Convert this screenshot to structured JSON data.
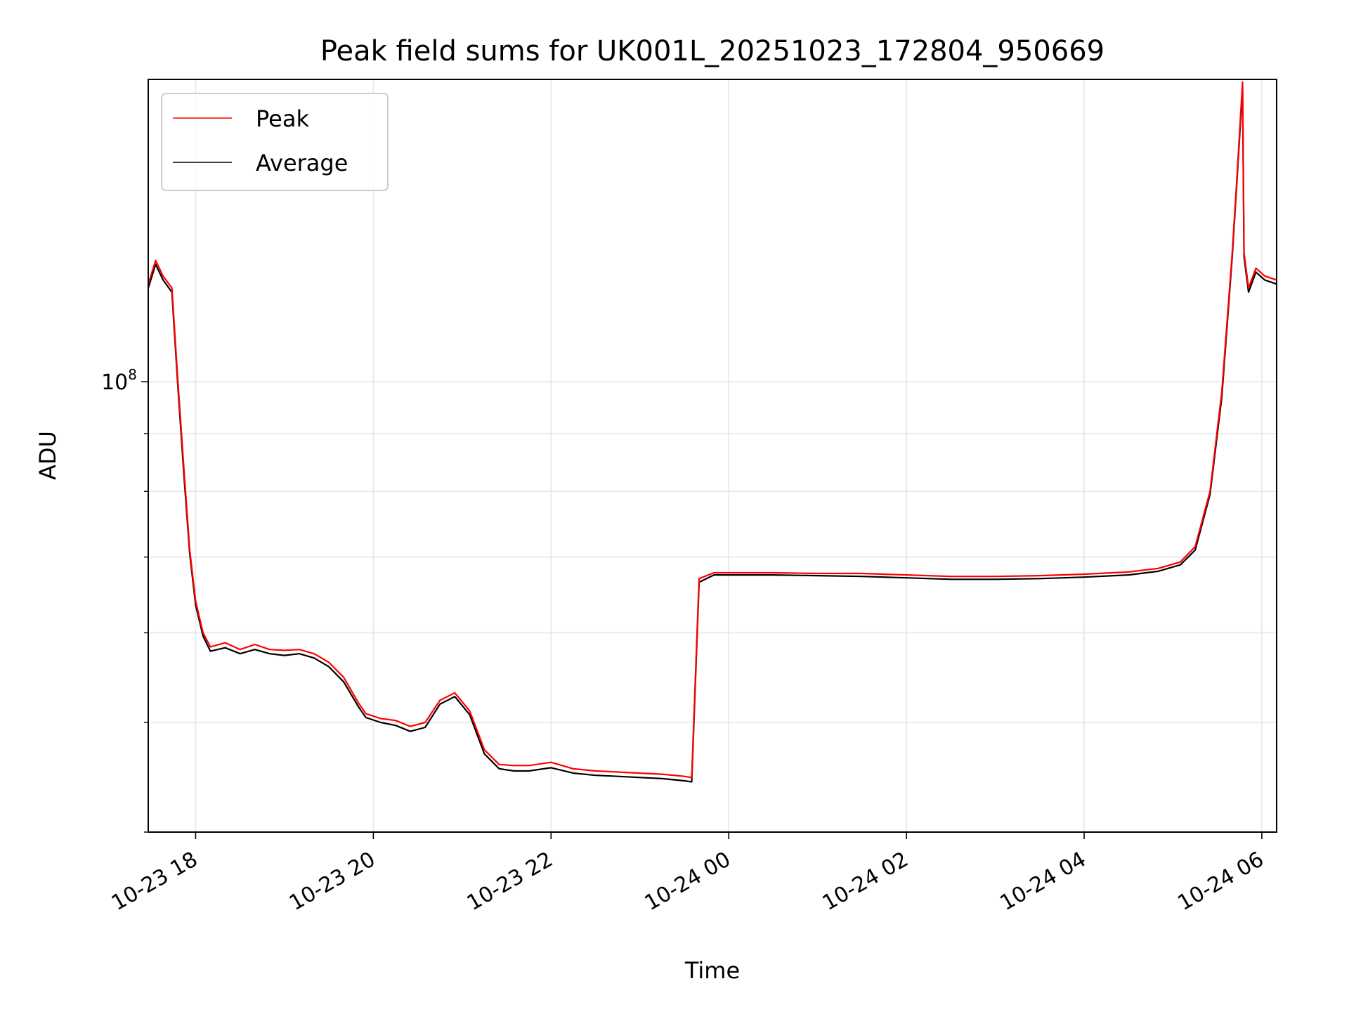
{
  "chart_data": {
    "type": "line",
    "title": "Peak field sums for UK001L_20251023_172804_950669",
    "xlabel": "Time",
    "ylabel": "ADU",
    "xlim": [
      "2025-10-23 17:28",
      "2025-10-24 06:10"
    ],
    "ylim": [
      40000000,
      185000000
    ],
    "yscale": "log",
    "grid": true,
    "legend_position": "top-left",
    "x_ticks": [
      {
        "time": "2025-10-23 18:00",
        "label": "10-23 18"
      },
      {
        "time": "2025-10-23 20:00",
        "label": "10-23 20"
      },
      {
        "time": "2025-10-23 22:00",
        "label": "10-23 22"
      },
      {
        "time": "2025-10-24 00:00",
        "label": "10-24 00"
      },
      {
        "time": "2025-10-24 02:00",
        "label": "10-24 02"
      },
      {
        "time": "2025-10-24 04:00",
        "label": "10-24 04"
      },
      {
        "time": "2025-10-24 06:00",
        "label": "10-24 06"
      }
    ],
    "y_major_tick": {
      "value": 100000000,
      "base": "10",
      "exponent": "8"
    },
    "y_minor_ticks": [
      40000000,
      50000000,
      60000000,
      70000000,
      80000000,
      90000000
    ],
    "series": [
      {
        "name": "Peak",
        "color": "#ff0000",
        "points": [
          [
            "2025-10-23 17:28",
            122000000
          ],
          [
            "2025-10-23 17:33",
            128000000
          ],
          [
            "2025-10-23 17:38",
            124000000
          ],
          [
            "2025-10-23 17:44",
            121000000
          ],
          [
            "2025-10-23 17:48",
            100000000
          ],
          [
            "2025-10-23 17:52",
            84000000
          ],
          [
            "2025-10-23 17:56",
            71000000
          ],
          [
            "2025-10-23 18:00",
            64000000
          ],
          [
            "2025-10-23 18:05",
            60000000
          ],
          [
            "2025-10-23 18:10",
            58300000
          ],
          [
            "2025-10-23 18:20",
            58800000
          ],
          [
            "2025-10-23 18:30",
            58000000
          ],
          [
            "2025-10-23 18:40",
            58600000
          ],
          [
            "2025-10-23 18:50",
            58000000
          ],
          [
            "2025-10-23 19:00",
            57900000
          ],
          [
            "2025-10-23 19:10",
            58000000
          ],
          [
            "2025-10-23 19:20",
            57500000
          ],
          [
            "2025-10-23 19:30",
            56500000
          ],
          [
            "2025-10-23 19:40",
            54800000
          ],
          [
            "2025-10-23 19:50",
            52000000
          ],
          [
            "2025-10-23 19:55",
            50900000
          ],
          [
            "2025-10-23 20:05",
            50400000
          ],
          [
            "2025-10-23 20:15",
            50200000
          ],
          [
            "2025-10-23 20:25",
            49600000
          ],
          [
            "2025-10-23 20:35",
            50000000
          ],
          [
            "2025-10-23 20:45",
            52300000
          ],
          [
            "2025-10-23 20:55",
            53100000
          ],
          [
            "2025-10-23 21:05",
            51200000
          ],
          [
            "2025-10-23 21:15",
            47300000
          ],
          [
            "2025-10-23 21:25",
            45900000
          ],
          [
            "2025-10-23 21:35",
            45800000
          ],
          [
            "2025-10-23 21:45",
            45800000
          ],
          [
            "2025-10-23 22:00",
            46100000
          ],
          [
            "2025-10-23 22:15",
            45500000
          ],
          [
            "2025-10-23 22:30",
            45300000
          ],
          [
            "2025-10-23 22:45",
            45200000
          ],
          [
            "2025-10-23 23:00",
            45100000
          ],
          [
            "2025-10-23 23:15",
            45000000
          ],
          [
            "2025-10-23 23:30",
            44800000
          ],
          [
            "2025-10-23 23:35",
            44700000
          ],
          [
            "2025-10-23 23:40",
            67000000
          ],
          [
            "2025-10-23 23:50",
            67800000
          ],
          [
            "2025-10-24 00:30",
            67800000
          ],
          [
            "2025-10-24 01:00",
            67700000
          ],
          [
            "2025-10-24 01:30",
            67700000
          ],
          [
            "2025-10-24 02:00",
            67500000
          ],
          [
            "2025-10-24 02:30",
            67300000
          ],
          [
            "2025-10-24 03:00",
            67300000
          ],
          [
            "2025-10-24 03:30",
            67400000
          ],
          [
            "2025-10-24 04:00",
            67600000
          ],
          [
            "2025-10-24 04:30",
            67900000
          ],
          [
            "2025-10-24 04:50",
            68400000
          ],
          [
            "2025-10-24 05:05",
            69300000
          ],
          [
            "2025-10-24 05:15",
            71500000
          ],
          [
            "2025-10-24 05:25",
            80000000
          ],
          [
            "2025-10-24 05:33",
            98000000
          ],
          [
            "2025-10-24 05:40",
            130000000
          ],
          [
            "2025-10-24 05:43",
            150000000
          ],
          [
            "2025-10-24 05:47",
            184000000
          ],
          [
            "2025-10-24 05:48",
            130000000
          ],
          [
            "2025-10-24 05:51",
            121000000
          ],
          [
            "2025-10-24 05:56",
            126000000
          ],
          [
            "2025-10-24 06:02",
            124000000
          ],
          [
            "2025-10-24 06:10",
            123000000
          ]
        ]
      },
      {
        "name": "Average",
        "color": "#000000",
        "points": [
          [
            "2025-10-23 17:28",
            121000000
          ],
          [
            "2025-10-23 17:33",
            127000000
          ],
          [
            "2025-10-23 17:38",
            123000000
          ],
          [
            "2025-10-23 17:44",
            120000000
          ],
          [
            "2025-10-23 17:48",
            99000000
          ],
          [
            "2025-10-23 17:52",
            83000000
          ],
          [
            "2025-10-23 17:56",
            70500000
          ],
          [
            "2025-10-23 18:00",
            63500000
          ],
          [
            "2025-10-23 18:05",
            59600000
          ],
          [
            "2025-10-23 18:10",
            57800000
          ],
          [
            "2025-10-23 18:20",
            58200000
          ],
          [
            "2025-10-23 18:30",
            57500000
          ],
          [
            "2025-10-23 18:40",
            58000000
          ],
          [
            "2025-10-23 18:50",
            57500000
          ],
          [
            "2025-10-23 19:00",
            57300000
          ],
          [
            "2025-10-23 19:10",
            57500000
          ],
          [
            "2025-10-23 19:20",
            57000000
          ],
          [
            "2025-10-23 19:30",
            56000000
          ],
          [
            "2025-10-23 19:40",
            54300000
          ],
          [
            "2025-10-23 19:50",
            51600000
          ],
          [
            "2025-10-23 19:55",
            50500000
          ],
          [
            "2025-10-23 20:05",
            50000000
          ],
          [
            "2025-10-23 20:15",
            49700000
          ],
          [
            "2025-10-23 20:25",
            49100000
          ],
          [
            "2025-10-23 20:35",
            49500000
          ],
          [
            "2025-10-23 20:45",
            51900000
          ],
          [
            "2025-10-23 20:55",
            52700000
          ],
          [
            "2025-10-23 21:05",
            50800000
          ],
          [
            "2025-10-23 21:15",
            46900000
          ],
          [
            "2025-10-23 21:25",
            45500000
          ],
          [
            "2025-10-23 21:35",
            45300000
          ],
          [
            "2025-10-23 21:45",
            45300000
          ],
          [
            "2025-10-23 22:00",
            45600000
          ],
          [
            "2025-10-23 22:15",
            45100000
          ],
          [
            "2025-10-23 22:30",
            44900000
          ],
          [
            "2025-10-23 22:45",
            44800000
          ],
          [
            "2025-10-23 23:00",
            44700000
          ],
          [
            "2025-10-23 23:15",
            44600000
          ],
          [
            "2025-10-23 23:30",
            44400000
          ],
          [
            "2025-10-23 23:35",
            44300000
          ],
          [
            "2025-10-23 23:40",
            66500000
          ],
          [
            "2025-10-23 23:50",
            67500000
          ],
          [
            "2025-10-24 00:30",
            67500000
          ],
          [
            "2025-10-24 01:00",
            67400000
          ],
          [
            "2025-10-24 01:30",
            67300000
          ],
          [
            "2025-10-24 02:00",
            67100000
          ],
          [
            "2025-10-24 02:30",
            66900000
          ],
          [
            "2025-10-24 03:00",
            66900000
          ],
          [
            "2025-10-24 03:30",
            67000000
          ],
          [
            "2025-10-24 04:00",
            67200000
          ],
          [
            "2025-10-24 04:30",
            67500000
          ],
          [
            "2025-10-24 04:50",
            68000000
          ],
          [
            "2025-10-24 05:05",
            68900000
          ],
          [
            "2025-10-24 05:15",
            71000000
          ],
          [
            "2025-10-24 05:25",
            79500000
          ],
          [
            "2025-10-24 05:33",
            97000000
          ],
          [
            "2025-10-24 05:40",
            129000000
          ],
          [
            "2025-10-24 05:43",
            149000000
          ],
          [
            "2025-10-24 05:47",
            182000000
          ],
          [
            "2025-10-24 05:48",
            129000000
          ],
          [
            "2025-10-24 05:51",
            120000000
          ],
          [
            "2025-10-24 05:56",
            125000000
          ],
          [
            "2025-10-24 06:02",
            123000000
          ],
          [
            "2025-10-24 06:10",
            122000000
          ]
        ]
      }
    ]
  }
}
